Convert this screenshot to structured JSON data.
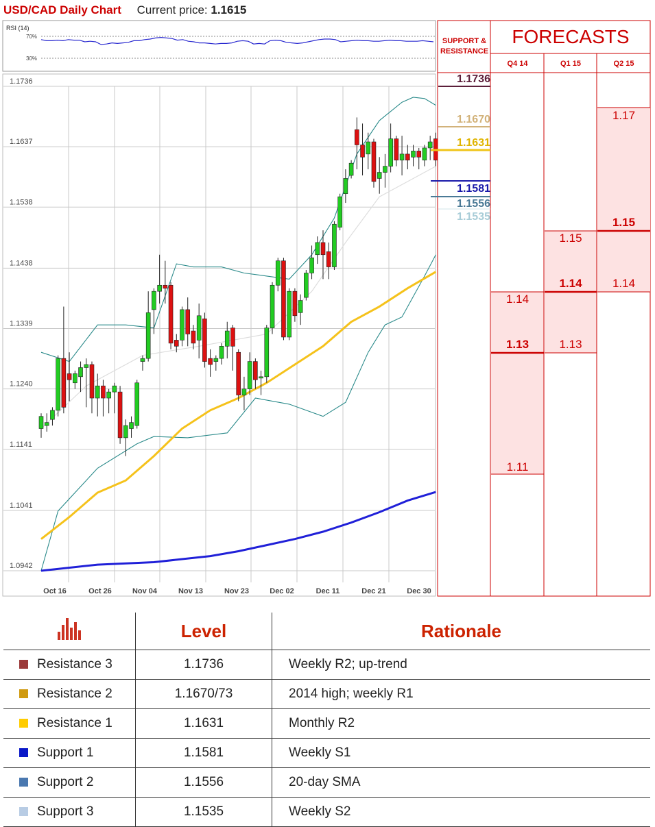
{
  "header": {
    "title": "USD/CAD Daily Chart",
    "price_label": "Current price:",
    "price": "1.1615"
  },
  "rsi": {
    "label": "RSI (14)",
    "upper": "70%",
    "lower": "30%",
    "values": [
      64,
      62,
      62,
      63,
      62,
      64,
      63,
      63,
      60,
      61,
      60,
      55,
      56,
      58,
      57,
      58,
      59,
      62,
      62,
      64,
      65,
      67,
      68,
      67,
      66,
      63,
      64,
      61,
      60,
      58,
      58,
      57,
      56,
      57,
      57,
      58,
      61,
      62,
      61,
      56,
      57,
      56,
      62,
      63,
      62,
      59,
      58,
      57,
      58,
      60,
      62,
      64,
      65,
      65,
      64,
      60,
      61,
      62,
      63,
      62,
      62,
      61,
      61,
      62,
      63,
      62,
      62,
      61,
      61,
      61,
      62,
      61,
      60
    ]
  },
  "sr": {
    "header": "SUPPORT & RESISTANCE",
    "levels": [
      {
        "text": "1.1736",
        "color": "#5c1f3a"
      },
      {
        "text": "1.1670",
        "color": "#d2b27a"
      },
      {
        "text": "1.1631",
        "color": "#f0c419"
      },
      {
        "text": "1.1581",
        "color": "#1a1aaa"
      },
      {
        "text": "1.1556",
        "color": "#4a7a96"
      },
      {
        "text": "1.1535",
        "color": "#a9cdd8"
      }
    ]
  },
  "forecasts": {
    "title": "FORECASTS",
    "columns": [
      "Q4 14",
      "Q1 15",
      "Q2 15"
    ],
    "q4": {
      "high": "1.14",
      "mid": "1.13",
      "low": "1.11"
    },
    "q1": {
      "high": "1.15",
      "mid": "1.14",
      "low": "1.13"
    },
    "q2": {
      "high": "1.17",
      "mid": "1.15",
      "low": "1.14"
    }
  },
  "chart_data": {
    "type": "candlestick",
    "title": "USD/CAD Daily Chart",
    "x_ticks": [
      "Oct 16",
      "Oct 26",
      "Nov 04",
      "Nov 13",
      "Nov 23",
      "Dec 02",
      "Dec 11",
      "Dec 21",
      "Dec 30"
    ],
    "y_ticks": [
      "1.1736",
      "1.1637",
      "1.1538",
      "1.1438",
      "1.1339",
      "1.1240",
      "1.1141",
      "1.1041",
      "1.0942"
    ],
    "ylim": [
      1.0942,
      1.1736
    ],
    "candles": [
      [
        1.1175,
        1.1195,
        1.116,
        1.12
      ],
      [
        1.118,
        1.1185,
        1.117,
        1.12
      ],
      [
        1.119,
        1.1205,
        1.118,
        1.121
      ],
      [
        1.1205,
        1.129,
        1.1195,
        1.1295
      ],
      [
        1.129,
        1.121,
        1.12,
        1.1375
      ],
      [
        1.1265,
        1.1255,
        1.122,
        1.13
      ],
      [
        1.125,
        1.1265,
        1.124,
        1.127
      ],
      [
        1.126,
        1.1275,
        1.1235,
        1.1285
      ],
      [
        1.1275,
        1.128,
        1.121,
        1.129
      ],
      [
        1.128,
        1.1225,
        1.12,
        1.1285
      ],
      [
        1.1225,
        1.1245,
        1.1195,
        1.1265
      ],
      [
        1.1245,
        1.1225,
        1.1195,
        1.1255
      ],
      [
        1.1225,
        1.1235,
        1.12,
        1.124
      ],
      [
        1.1235,
        1.1245,
        1.12,
        1.125
      ],
      [
        1.1235,
        1.116,
        1.115,
        1.1245
      ],
      [
        1.116,
        1.118,
        1.113,
        1.119
      ],
      [
        1.1175,
        1.1185,
        1.116,
        1.1195
      ],
      [
        1.118,
        1.125,
        1.1175,
        1.1255
      ],
      [
        1.1285,
        1.129,
        1.127,
        1.1295
      ],
      [
        1.129,
        1.1365,
        1.1285,
        1.14
      ],
      [
        1.137,
        1.14,
        1.133,
        1.1405
      ],
      [
        1.14,
        1.141,
        1.138,
        1.146
      ],
      [
        1.141,
        1.1405,
        1.138,
        1.145
      ],
      [
        1.141,
        1.1315,
        1.1305,
        1.1415
      ],
      [
        1.132,
        1.131,
        1.13,
        1.133
      ],
      [
        1.132,
        1.137,
        1.131,
        1.1375
      ],
      [
        1.137,
        1.133,
        1.131,
        1.139
      ],
      [
        1.1335,
        1.1315,
        1.1305,
        1.1345
      ],
      [
        1.132,
        1.136,
        1.129,
        1.138
      ],
      [
        1.1355,
        1.1285,
        1.1275,
        1.1365
      ],
      [
        1.129,
        1.128,
        1.126,
        1.1305
      ],
      [
        1.1285,
        1.129,
        1.127,
        1.1295
      ],
      [
        1.129,
        1.131,
        1.128,
        1.1315
      ],
      [
        1.131,
        1.1335,
        1.129,
        1.135
      ],
      [
        1.134,
        1.131,
        1.127,
        1.1345
      ],
      [
        1.13,
        1.123,
        1.122,
        1.1305
      ],
      [
        1.123,
        1.124,
        1.1205,
        1.126
      ],
      [
        1.124,
        1.1285,
        1.123,
        1.13
      ],
      [
        1.1285,
        1.1255,
        1.124,
        1.129
      ],
      [
        1.126,
        1.126,
        1.123,
        1.127
      ],
      [
        1.126,
        1.134,
        1.125,
        1.1345
      ],
      [
        1.134,
        1.141,
        1.133,
        1.1415
      ],
      [
        1.141,
        1.145,
        1.14,
        1.1455
      ],
      [
        1.145,
        1.1325,
        1.132,
        1.1455
      ],
      [
        1.1325,
        1.14,
        1.132,
        1.1405
      ],
      [
        1.14,
        1.136,
        1.135,
        1.1405
      ],
      [
        1.1365,
        1.1385,
        1.1345,
        1.1395
      ],
      [
        1.139,
        1.143,
        1.1385,
        1.1435
      ],
      [
        1.143,
        1.1455,
        1.142,
        1.1475
      ],
      [
        1.146,
        1.148,
        1.1445,
        1.149
      ],
      [
        1.148,
        1.146,
        1.142,
        1.15
      ],
      [
        1.1465,
        1.144,
        1.142,
        1.148
      ],
      [
        1.144,
        1.151,
        1.1435,
        1.1515
      ],
      [
        1.1505,
        1.1555,
        1.15,
        1.156
      ],
      [
        1.156,
        1.1585,
        1.1545,
        1.16
      ],
      [
        1.159,
        1.161,
        1.1585,
        1.1615
      ],
      [
        1.1665,
        1.164,
        1.16,
        1.1685
      ],
      [
        1.164,
        1.162,
        1.159,
        1.1675
      ],
      [
        1.1625,
        1.1645,
        1.16,
        1.166
      ],
      [
        1.1645,
        1.158,
        1.157,
        1.165
      ],
      [
        1.1585,
        1.1595,
        1.156,
        1.162
      ],
      [
        1.1595,
        1.1605,
        1.157,
        1.1625
      ],
      [
        1.1605,
        1.165,
        1.1595,
        1.1675
      ],
      [
        1.165,
        1.1615,
        1.1605,
        1.1655
      ],
      [
        1.1615,
        1.1625,
        1.159,
        1.1655
      ],
      [
        1.1625,
        1.1615,
        1.16,
        1.164
      ],
      [
        1.162,
        1.163,
        1.1605,
        1.164
      ],
      [
        1.163,
        1.162,
        1.16,
        1.1635
      ],
      [
        1.1615,
        1.1635,
        1.1605,
        1.164
      ],
      [
        1.1635,
        1.1645,
        1.1615,
        1.1655
      ],
      [
        1.165,
        1.1615,
        1.1605,
        1.166
      ]
    ],
    "upper_band": [
      [
        0,
        1.13
      ],
      [
        5,
        1.1285
      ],
      [
        10,
        1.1345
      ],
      [
        15,
        1.1345
      ],
      [
        20,
        1.134
      ],
      [
        24,
        1.1445
      ],
      [
        27,
        1.144
      ],
      [
        32,
        1.144
      ],
      [
        36,
        1.143
      ],
      [
        40,
        1.1425
      ],
      [
        44,
        1.142
      ],
      [
        48,
        1.146
      ],
      [
        52,
        1.152
      ],
      [
        56,
        1.1625
      ],
      [
        60,
        1.168
      ],
      [
        64,
        1.171
      ],
      [
        66,
        1.1718
      ],
      [
        68,
        1.1716
      ],
      [
        70,
        1.1705
      ]
    ],
    "lower_band": [
      [
        0,
        1.0942
      ],
      [
        3,
        1.104
      ],
      [
        10,
        1.111
      ],
      [
        17,
        1.115
      ],
      [
        20,
        1.1162
      ],
      [
        26,
        1.116
      ],
      [
        33,
        1.1168
      ],
      [
        38,
        1.1225
      ],
      [
        44,
        1.1215
      ],
      [
        50,
        1.1195
      ],
      [
        54,
        1.1218
      ],
      [
        58,
        1.13
      ],
      [
        61,
        1.1345
      ],
      [
        64,
        1.1358
      ],
      [
        68,
        1.1425
      ],
      [
        70,
        1.146
      ]
    ],
    "mid_band": [
      [
        0,
        1.1175
      ],
      [
        8,
        1.1245
      ],
      [
        18,
        1.1295
      ],
      [
        28,
        1.131
      ],
      [
        40,
        1.133
      ],
      [
        48,
        1.14
      ],
      [
        54,
        1.148
      ],
      [
        60,
        1.1555
      ],
      [
        66,
        1.1585
      ],
      [
        70,
        1.1605
      ]
    ],
    "sma_yellow": [
      [
        0,
        1.0994
      ],
      [
        5,
        1.103
      ],
      [
        10,
        1.107
      ],
      [
        15,
        1.109
      ],
      [
        20,
        1.113
      ],
      [
        25,
        1.1175
      ],
      [
        30,
        1.1205
      ],
      [
        35,
        1.1225
      ],
      [
        40,
        1.125
      ],
      [
        45,
        1.128
      ],
      [
        50,
        1.131
      ],
      [
        55,
        1.135
      ],
      [
        60,
        1.1375
      ],
      [
        65,
        1.1405
      ],
      [
        70,
        1.1432
      ]
    ],
    "sma_blue": [
      [
        0,
        1.0942
      ],
      [
        10,
        1.0952
      ],
      [
        20,
        1.0956
      ],
      [
        30,
        1.0966
      ],
      [
        35,
        1.0974
      ],
      [
        40,
        1.0984
      ],
      [
        45,
        1.0994
      ],
      [
        50,
        1.1006
      ],
      [
        55,
        1.1021
      ],
      [
        60,
        1.1038
      ],
      [
        65,
        1.1057
      ],
      [
        70,
        1.1071
      ]
    ]
  },
  "table": {
    "headers": {
      "level": "Level",
      "rationale": "Rationale"
    },
    "rows": [
      {
        "label": "Resistance 3",
        "level": "1.1736",
        "rationale": "Weekly R2; up-trend",
        "color": "#9b3a3a"
      },
      {
        "label": "Resistance 2",
        "level": "1.1670/73",
        "rationale": "2014 high; weekly R1",
        "color": "#d09a10"
      },
      {
        "label": "Resistance 1",
        "level": "1.1631",
        "rationale": "Monthly R2",
        "color": "#ffcc00"
      },
      {
        "label": "Support 1",
        "level": "1.1581",
        "rationale": "Weekly S1",
        "color": "#0a18c8"
      },
      {
        "label": "Support 2",
        "level": "1.1556",
        "rationale": "20-day SMA",
        "color": "#4a78b0"
      },
      {
        "label": "Support 3",
        "level": "1.1535",
        "rationale": "Weekly S2",
        "color": "#b8cce4"
      }
    ]
  }
}
